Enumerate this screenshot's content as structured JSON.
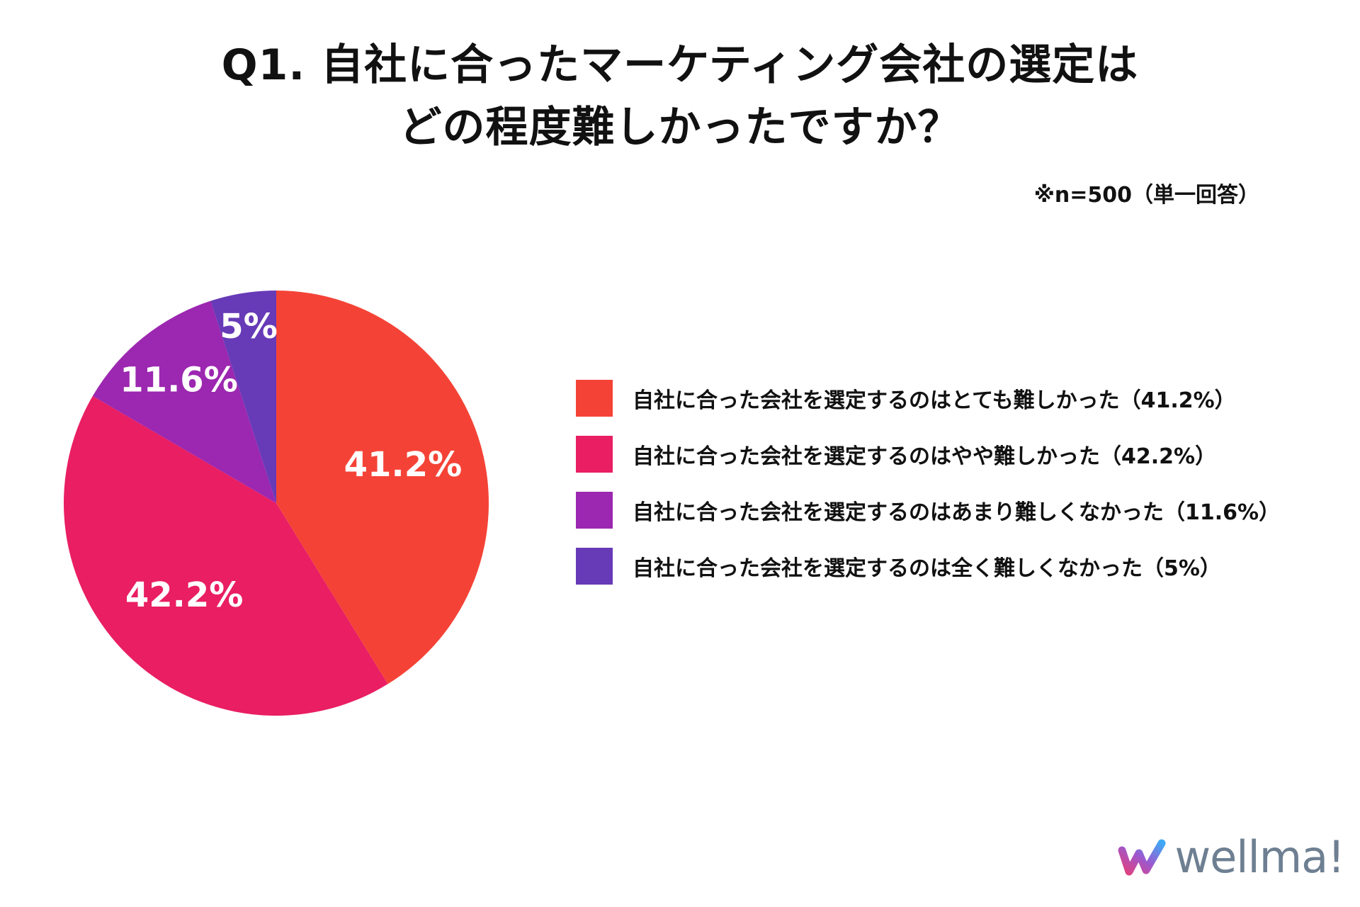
{
  "title": {
    "line1": "Q1. 自社に合ったマーケティング会社の選定は",
    "line2": "どの程度難しかったですか？"
  },
  "note": "※n=500（単一回答）",
  "chart_data": {
    "type": "pie",
    "title": "Q1. 自社に合ったマーケティング会社の選定はどの程度難しかったですか？",
    "categories": [
      "自社に合った会社を選定するのはとても難しかった",
      "自社に合った会社を選定するのはやや難しかった",
      "自社に合った会社を選定するのはあまり難しくなかった",
      "自社に合った会社を選定するのは全く難しくなかった"
    ],
    "values": [
      41.2,
      42.2,
      11.6,
      5
    ],
    "value_labels": [
      "41.2%",
      "42.2%",
      "11.6%",
      "5%"
    ],
    "colors": [
      "#f44336",
      "#e91e63",
      "#9c27b0",
      "#673ab7"
    ],
    "start_angle_deg": 0,
    "direction": "clockwise",
    "legend_position": "right"
  },
  "legend": [
    {
      "label": "自社に合った会社を選定するのはとても難しかった（41.2%）",
      "color": "#f44336"
    },
    {
      "label": "自社に合った会社を選定するのはやや難しかった（42.2%）",
      "color": "#e91e63"
    },
    {
      "label": "自社に合った会社を選定するのはあまり難しくなかった（11.6%）",
      "color": "#9c27b0"
    },
    {
      "label": "自社に合った会社を選定するのは全く難しくなかった（5%）",
      "color": "#673ab7"
    }
  ],
  "logo": {
    "text": "wellma!",
    "color": "#6e7f92"
  }
}
